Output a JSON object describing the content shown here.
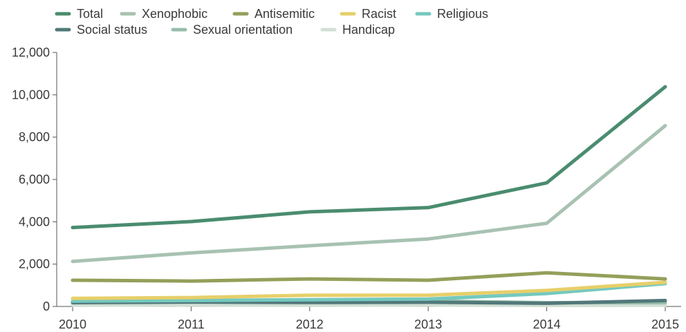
{
  "chart_data": {
    "type": "line",
    "categories": [
      "2010",
      "2011",
      "2012",
      "2013",
      "2014",
      "2015"
    ],
    "ylim": [
      0,
      12000
    ],
    "yticks": [
      "0",
      "2,000",
      "4,000",
      "6,000",
      "8,000",
      "10,000",
      "12,000"
    ],
    "ytick_values": [
      0,
      2000,
      4000,
      6000,
      8000,
      10000,
      12000
    ],
    "title": "",
    "xlabel": "",
    "ylabel": "",
    "grid": false,
    "legend_position": "top",
    "series": [
      {
        "name": "Total",
        "color": "#4a8c6f",
        "values": [
          3730,
          4010,
          4470,
          4670,
          5840,
          10380
        ]
      },
      {
        "name": "Xenophobic",
        "color": "#a8c2b2",
        "values": [
          2130,
          2530,
          2870,
          3190,
          3930,
          8540
        ]
      },
      {
        "name": "Antisemitic",
        "color": "#93a05a",
        "values": [
          1240,
          1200,
          1300,
          1240,
          1590,
          1300
        ]
      },
      {
        "name": "Racist",
        "color": "#e7cf6a",
        "values": [
          380,
          420,
          530,
          530,
          760,
          1140
        ]
      },
      {
        "name": "Religious",
        "color": "#74c9bf",
        "values": [
          250,
          280,
          320,
          350,
          610,
          1080
        ]
      },
      {
        "name": "Social status",
        "color": "#52787a",
        "values": [
          180,
          210,
          190,
          200,
          150,
          280
        ]
      },
      {
        "name": "Sexual orientation",
        "color": "#97bdaa",
        "values": [
          200,
          220,
          250,
          260,
          180,
          180
        ]
      },
      {
        "name": "Handicap",
        "color": "#d2dfd4",
        "values": [
          60,
          70,
          60,
          70,
          50,
          60
        ]
      }
    ]
  }
}
